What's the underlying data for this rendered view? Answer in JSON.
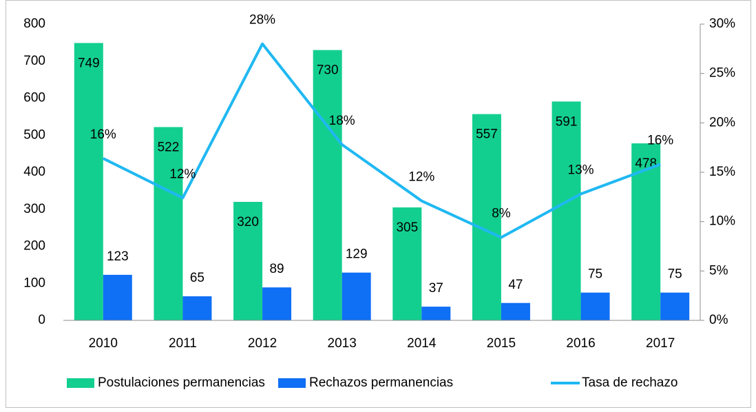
{
  "chart_data": {
    "type": "bar-line",
    "categories": [
      "2010",
      "2011",
      "2012",
      "2013",
      "2014",
      "2015",
      "2016",
      "2017"
    ],
    "series": [
      {
        "name": "Postulaciones permanencias",
        "type": "bar",
        "color": "#13cf8f",
        "values": [
          749,
          522,
          320,
          730,
          305,
          557,
          591,
          478
        ]
      },
      {
        "name": "Rechazos permanencias",
        "type": "bar",
        "color": "#0f6ff5",
        "values": [
          123,
          65,
          89,
          129,
          37,
          47,
          75,
          75
        ]
      },
      {
        "name": "Tasa de rechazo",
        "type": "line",
        "axis": "y2",
        "color": "#1fb8f2",
        "values": [
          16.4,
          12.4,
          28,
          17.8,
          12.1,
          8.4,
          12.8,
          15.8
        ],
        "value_labels": [
          "16%",
          "12%",
          "28%",
          "18%",
          "12%",
          "8%",
          "13%",
          "16%"
        ]
      }
    ],
    "ylim": [
      0,
      800
    ],
    "yticks": [
      0,
      100,
      200,
      300,
      400,
      500,
      600,
      700,
      800
    ],
    "y2lim": [
      0,
      30
    ],
    "y2ticks": [
      {
        "value": 0,
        "label": "0%"
      },
      {
        "value": 5,
        "label": "5%"
      },
      {
        "value": 10,
        "label": "10%"
      },
      {
        "value": 15,
        "label": "15%"
      },
      {
        "value": 20,
        "label": "20%"
      },
      {
        "value": 25,
        "label": "25%"
      },
      {
        "value": 30,
        "label": "30%"
      }
    ],
    "legend": "bottom"
  }
}
